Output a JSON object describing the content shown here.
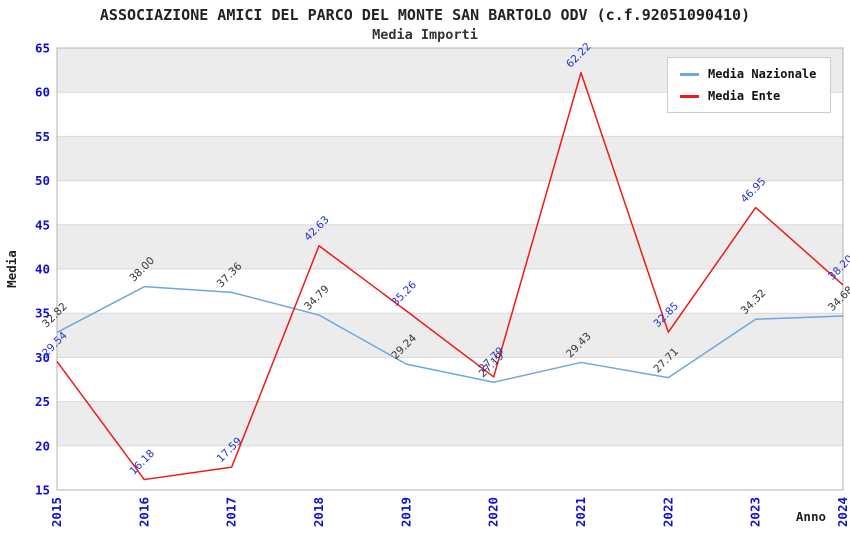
{
  "title": "ASSOCIAZIONE AMICI DEL PARCO DEL MONTE SAN BARTOLO ODV (c.f.92051090410)",
  "subtitle": "Media Importi",
  "axes": {
    "x_label": "Anno",
    "y_label": "Media",
    "y_ticks": [
      15,
      20,
      25,
      30,
      35,
      40,
      45,
      50,
      55,
      60,
      65
    ],
    "x_ticks": [
      "2015",
      "2016",
      "2017",
      "2018",
      "2019",
      "2020",
      "2021",
      "2022",
      "2023",
      "2024"
    ]
  },
  "colors": {
    "band": "#ececec",
    "grid": "#d9d9d9",
    "plot_border": "#b3b3b3",
    "tick_blue": "#1111cc",
    "ente_label_blue": "#2233cc",
    "nazionale_label_dark": "#333333",
    "nazionale_line": "#6fa8dc",
    "ente_line": "#ee1a1a"
  },
  "legend": {
    "items": [
      {
        "label": "Media Nazionale",
        "color": "#6fa8dc"
      },
      {
        "label": "Media Ente",
        "color": "#ee1a1a"
      }
    ]
  },
  "chart_data": {
    "type": "line",
    "title": "ASSOCIAZIONE AMICI DEL PARCO DEL MONTE SAN BARTOLO ODV (c.f.92051090410)",
    "subtitle": "Media Importi",
    "xlabel": "Anno",
    "ylabel": "Media",
    "x": [
      2015,
      2016,
      2017,
      2018,
      2019,
      2020,
      2021,
      2022,
      2023,
      2024
    ],
    "ylim": [
      15,
      65
    ],
    "ytick_step": 5,
    "grid": true,
    "alternating_bands": true,
    "legend_position": "top-right",
    "series": [
      {
        "name": "Media Nazionale",
        "color": "#6fa8dc",
        "label_color": "#333333",
        "values": [
          32.82,
          38.0,
          37.36,
          34.79,
          29.24,
          27.19,
          29.43,
          27.71,
          34.32,
          34.68
        ]
      },
      {
        "name": "Media Ente",
        "color": "#ee1a1a",
        "label_color": "#2233cc",
        "values": [
          29.54,
          16.18,
          17.59,
          42.63,
          35.26,
          27.79,
          62.22,
          32.85,
          46.95,
          38.2
        ]
      }
    ]
  }
}
